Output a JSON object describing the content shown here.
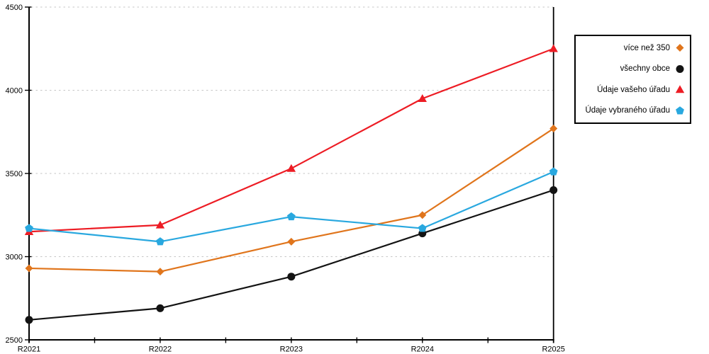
{
  "chart_data": {
    "type": "line",
    "title": "",
    "xlabel": "",
    "ylabel": "",
    "categories": [
      "R2021",
      "R2022",
      "R2023",
      "R2024",
      "R2025"
    ],
    "series": [
      {
        "id": "vice-nez-350",
        "name": "více než 350",
        "marker": "diamond",
        "color": "#E0751C",
        "values": [
          2930,
          2910,
          3090,
          3250,
          3770
        ]
      },
      {
        "id": "vsechny-obce",
        "name": "všechny obce",
        "marker": "circle",
        "color": "#131313",
        "values": [
          2620,
          2690,
          2880,
          3140,
          3400
        ]
      },
      {
        "id": "udaje-vaseho-uradu",
        "name": "Údaje vašeho úřadu",
        "marker": "triangle",
        "color": "#ED1C24",
        "values": [
          3150,
          3190,
          3530,
          3950,
          4250
        ]
      },
      {
        "id": "udaje-vybraneho-uradu",
        "name": "Údaje vybraného úřadu",
        "marker": "pentagon",
        "color": "#29A8DF",
        "values": [
          3170,
          3090,
          3240,
          3170,
          3510
        ]
      }
    ],
    "ylim": [
      2500,
      4500
    ],
    "yticks": [
      2500,
      3000,
      3500,
      4000,
      4500
    ],
    "grid": "horizontal-dashed",
    "gridline_color": "#C6C6C6",
    "axis_color": "#000000",
    "legend_position": "top-right-outside",
    "minor_x_ticks_between_categories": true
  }
}
